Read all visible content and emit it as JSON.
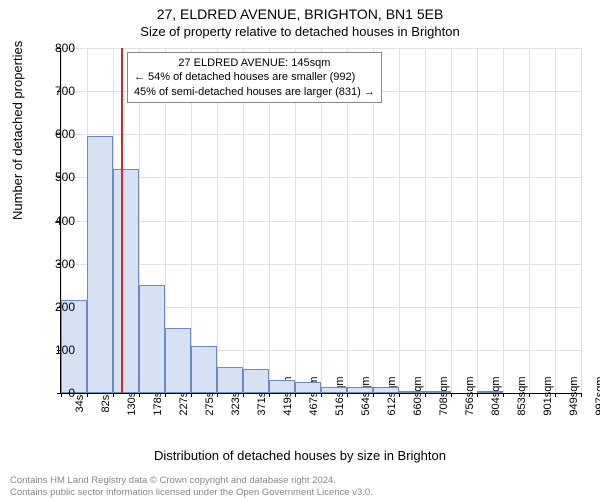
{
  "title": "27, ELDRED AVENUE, BRIGHTON, BN1 5EB",
  "subtitle": "Size of property relative to detached houses in Brighton",
  "ylabel": "Number of detached properties",
  "xlabel": "Distribution of detached houses by size in Brighton",
  "footer_line1": "Contains HM Land Registry data © Crown copyright and database right 2024.",
  "footer_line2": "Contains public sector information licensed under the Open Government Licence v3.0.",
  "chart": {
    "type": "bar",
    "xlim": [
      34,
      997
    ],
    "ylim": [
      0,
      800
    ],
    "ytick_step": 100,
    "xtick_step": 48,
    "xtick_unit": "sqm",
    "bar_fill": "#d6e1f4",
    "bar_border": "#6b89c7",
    "grid_color": "#e0e0e0",
    "background": "#ffffff",
    "marker_value": 145,
    "marker_color": "#d62728",
    "bars": [
      {
        "x": 34,
        "v": 215
      },
      {
        "x": 82,
        "v": 595
      },
      {
        "x": 130,
        "v": 520
      },
      {
        "x": 178,
        "v": 250
      },
      {
        "x": 227,
        "v": 150
      },
      {
        "x": 275,
        "v": 110
      },
      {
        "x": 323,
        "v": 60
      },
      {
        "x": 371,
        "v": 55
      },
      {
        "x": 419,
        "v": 30
      },
      {
        "x": 467,
        "v": 25
      },
      {
        "x": 516,
        "v": 15
      },
      {
        "x": 564,
        "v": 15
      },
      {
        "x": 612,
        "v": 15
      },
      {
        "x": 660,
        "v": 5
      },
      {
        "x": 708,
        "v": 5
      },
      {
        "x": 756,
        "v": 0
      },
      {
        "x": 804,
        "v": 5
      },
      {
        "x": 853,
        "v": 0
      },
      {
        "x": 901,
        "v": 0
      },
      {
        "x": 949,
        "v": 0
      },
      {
        "x": 997,
        "v": 0
      }
    ],
    "xticks": [
      34,
      82,
      130,
      178,
      227,
      275,
      323,
      371,
      419,
      467,
      516,
      564,
      612,
      660,
      708,
      756,
      804,
      853,
      901,
      949,
      997
    ]
  },
  "annotation": {
    "line1": "27 ELDRED AVENUE: 145sqm",
    "line2": "← 54% of detached houses are smaller (992)",
    "line3": "45% of semi-detached houses are larger (831) →"
  }
}
